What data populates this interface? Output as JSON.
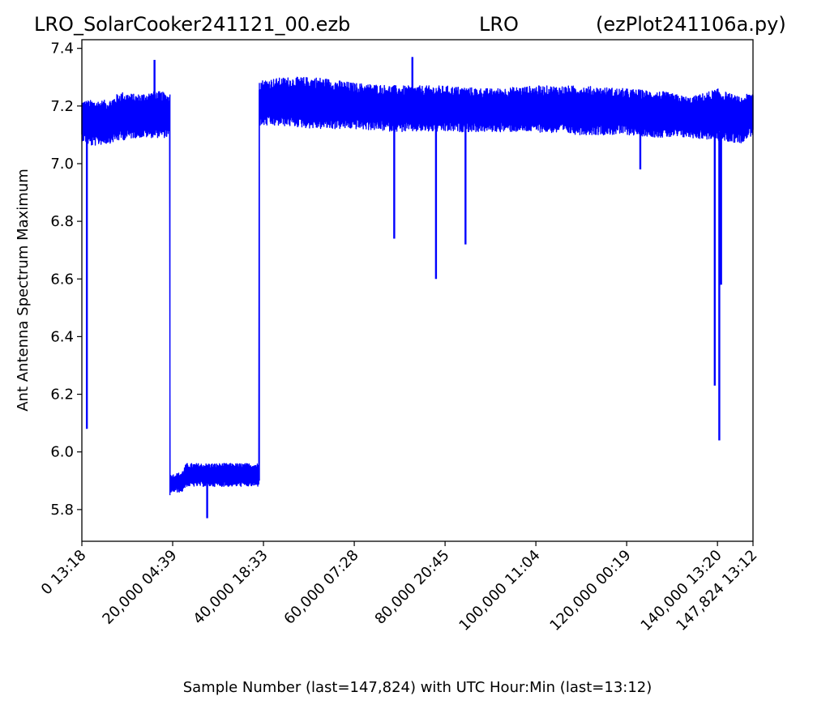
{
  "header": {
    "left": "LRO_SolarCooker241121_00.ezb",
    "center": "LRO",
    "right": "(ezPlot241106a.py)"
  },
  "chart_data": {
    "type": "line",
    "xlabel": "Sample Number (last=147,824) with UTC Hour:Min (last=13:12)",
    "ylabel": "Ant Antenna Spectrum Maximum",
    "xlim": [
      0,
      147824
    ],
    "ylim": [
      5.69,
      7.43
    ],
    "grid": false,
    "x_ticks": [
      {
        "value": 0,
        "label": "0  13:18"
      },
      {
        "value": 20000,
        "label": "20,000  04:39"
      },
      {
        "value": 40000,
        "label": "40,000  18:33"
      },
      {
        "value": 60000,
        "label": "60,000  07:28"
      },
      {
        "value": 80000,
        "label": "80,000  20:45"
      },
      {
        "value": 100000,
        "label": "100,000  11:04"
      },
      {
        "value": 120000,
        "label": "120,000  00:19"
      },
      {
        "value": 140000,
        "label": "140,000  13:20"
      },
      {
        "value": 147824,
        "label": "147,824  13:12"
      }
    ],
    "y_ticks": [
      {
        "value": 5.8,
        "label": "5.8"
      },
      {
        "value": 6.0,
        "label": "6.0"
      },
      {
        "value": 6.2,
        "label": "6.2"
      },
      {
        "value": 6.4,
        "label": "6.4"
      },
      {
        "value": 6.6,
        "label": "6.6"
      },
      {
        "value": 6.8,
        "label": "6.8"
      },
      {
        "value": 7.0,
        "label": "7.0"
      },
      {
        "value": 7.2,
        "label": "7.2"
      },
      {
        "value": 7.4,
        "label": "7.4"
      }
    ],
    "series": [
      {
        "color": "#0000ff",
        "envelope": [
          {
            "x": 0,
            "min": 7.08,
            "max": 7.22
          },
          {
            "x": 2000,
            "min": 7.06,
            "max": 7.22
          },
          {
            "x": 6000,
            "min": 7.07,
            "max": 7.22
          },
          {
            "x": 8500,
            "min": 7.08,
            "max": 7.25
          },
          {
            "x": 12000,
            "min": 7.09,
            "max": 7.24
          },
          {
            "x": 15500,
            "min": 7.09,
            "max": 7.25
          },
          {
            "x": 17500,
            "min": 7.09,
            "max": 7.25
          },
          {
            "x": 19300,
            "min": 7.09,
            "max": 7.24
          },
          {
            "x": 19500,
            "min": 5.86,
            "max": 5.92
          },
          {
            "x": 22000,
            "min": 5.86,
            "max": 5.93
          },
          {
            "x": 23000,
            "min": 5.88,
            "max": 5.96
          },
          {
            "x": 28000,
            "min": 5.88,
            "max": 5.96
          },
          {
            "x": 33000,
            "min": 5.88,
            "max": 5.96
          },
          {
            "x": 38900,
            "min": 5.88,
            "max": 5.96
          },
          {
            "x": 39200,
            "min": 7.13,
            "max": 7.29
          },
          {
            "x": 45000,
            "min": 7.13,
            "max": 7.3
          },
          {
            "x": 52000,
            "min": 7.12,
            "max": 7.3
          },
          {
            "x": 60000,
            "min": 7.12,
            "max": 7.28
          },
          {
            "x": 70000,
            "min": 7.11,
            "max": 7.27
          },
          {
            "x": 80000,
            "min": 7.11,
            "max": 7.27
          },
          {
            "x": 90000,
            "min": 7.11,
            "max": 7.26
          },
          {
            "x": 100000,
            "min": 7.11,
            "max": 7.27
          },
          {
            "x": 110000,
            "min": 7.1,
            "max": 7.27
          },
          {
            "x": 120000,
            "min": 7.1,
            "max": 7.26
          },
          {
            "x": 128000,
            "min": 7.09,
            "max": 7.25
          },
          {
            "x": 134000,
            "min": 7.09,
            "max": 7.23
          },
          {
            "x": 140000,
            "min": 7.08,
            "max": 7.26
          },
          {
            "x": 145000,
            "min": 7.07,
            "max": 7.23
          },
          {
            "x": 147824,
            "min": 7.1,
            "max": 7.25
          }
        ],
        "spikes": [
          {
            "x": 1100,
            "y": 6.08
          },
          {
            "x": 16000,
            "y": 7.36
          },
          {
            "x": 27600,
            "y": 5.77
          },
          {
            "x": 68800,
            "y": 6.74
          },
          {
            "x": 72800,
            "y": 7.37
          },
          {
            "x": 78000,
            "y": 6.6
          },
          {
            "x": 84500,
            "y": 6.72
          },
          {
            "x": 123000,
            "y": 6.98
          },
          {
            "x": 139400,
            "y": 6.23
          },
          {
            "x": 140400,
            "y": 6.04
          },
          {
            "x": 140800,
            "y": 6.58
          }
        ]
      }
    ]
  }
}
